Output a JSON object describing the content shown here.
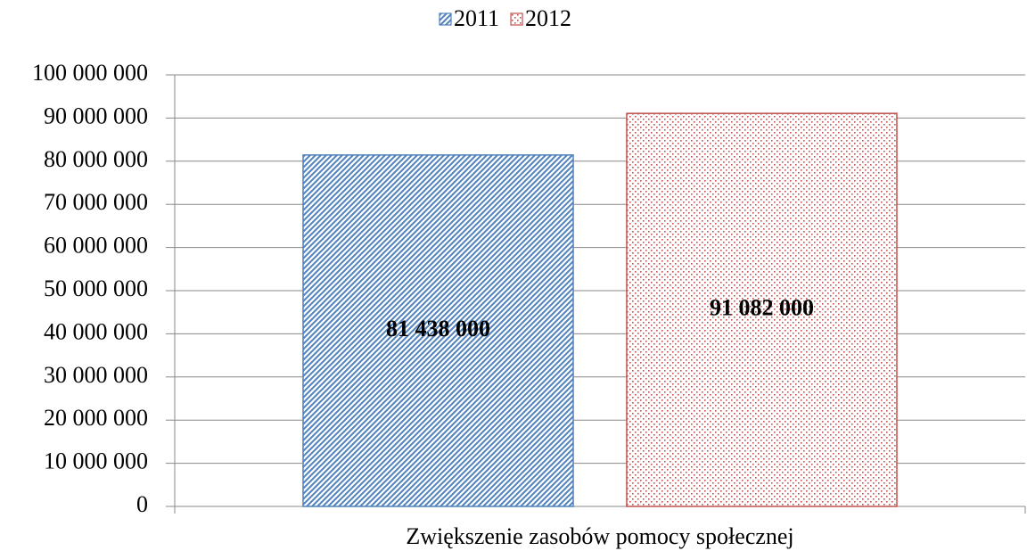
{
  "chart_data": {
    "type": "bar",
    "categories": [
      "Zwiększenie zasobów pomocy społecznej"
    ],
    "series": [
      {
        "name": "2011",
        "color": "#4f81bd",
        "pattern": "diagonal",
        "values": [
          81438000
        ],
        "value_labels": [
          "81 438 000"
        ]
      },
      {
        "name": "2012",
        "color": "#c0504d",
        "pattern": "dots",
        "values": [
          91082000
        ],
        "value_labels": [
          "91 082 000"
        ]
      }
    ],
    "ylim": [
      0,
      100000000
    ],
    "yticks": [
      0,
      {
        "value": 10000000,
        "label": "10 000 000"
      },
      {
        "value": 20000000,
        "label": "20 000 000"
      },
      {
        "value": 30000000,
        "label": "30 000 000"
      },
      {
        "value": 40000000,
        "label": "40 000 000"
      },
      {
        "value": 50000000,
        "label": "50 000 000"
      },
      {
        "value": 60000000,
        "label": "60 000 000"
      },
      {
        "value": 70000000,
        "label": "70 000 000"
      },
      {
        "value": 80000000,
        "label": "80 000 000"
      },
      {
        "value": 90000000,
        "label": "90 000 000"
      },
      {
        "value": 100000000,
        "label": "100 000 000"
      }
    ],
    "grid": true,
    "legend": "top"
  }
}
